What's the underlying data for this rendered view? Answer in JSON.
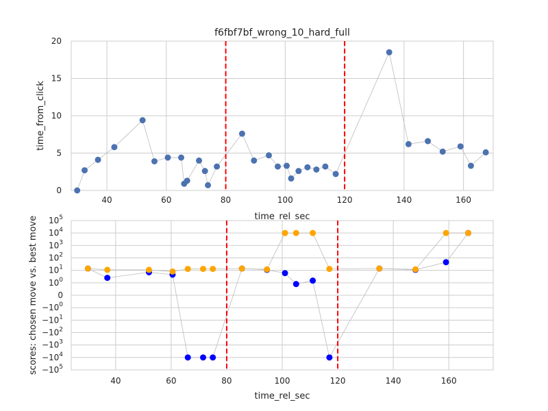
{
  "chart_data": [
    {
      "type": "scatter",
      "title": "f6fbf7bf_wrong_10_hard_full",
      "xlabel": "time_rel_sec",
      "ylabel": "time_from_click",
      "xlim": [
        28,
        170
      ],
      "ylim": [
        0,
        20
      ],
      "xticks": [
        40,
        60,
        80,
        100,
        120,
        140,
        160
      ],
      "yticks": [
        0,
        5,
        10,
        15,
        20
      ],
      "grid": true,
      "connect_points": true,
      "marker_color": "#4c72b0",
      "line_color": "#bbbbbb",
      "vlines": [
        80,
        120
      ],
      "vline_color": "#ff0000",
      "series": [
        {
          "x": [
            30,
            32.5,
            37,
            42.5,
            52,
            56,
            60.5,
            65,
            66,
            67,
            71,
            73,
            74,
            77,
            85.5,
            89.5,
            94.5,
            97.5,
            100.5,
            102,
            104.5,
            107.5,
            110.5,
            113.5,
            117,
            135,
            141.5,
            148,
            153,
            159,
            162.5,
            167.5
          ],
          "y": [
            0,
            2.7,
            4.1,
            5.8,
            9.4,
            3.9,
            4.4,
            4.4,
            0.9,
            1.3,
            4.0,
            2.6,
            0.7,
            3.2,
            7.6,
            4.0,
            4.7,
            3.2,
            3.3,
            1.6,
            2.6,
            3.1,
            2.8,
            3.2,
            2.2,
            18.5,
            6.2,
            6.6,
            5.2,
            5.9,
            3.3,
            5.1
          ]
        }
      ]
    },
    {
      "type": "scatter",
      "xlabel": "time_rel_sec",
      "ylabel": "scores: chosen move vs. best move",
      "xlim": [
        24,
        176
      ],
      "yscale": "symlog",
      "ylim": [
        -100000,
        100000
      ],
      "xticks": [
        40,
        60,
        80,
        100,
        120,
        140,
        160
      ],
      "yticks": [
        100000,
        10000,
        1000,
        100,
        10,
        1,
        0,
        -1,
        -10,
        -100,
        -1000,
        -10000,
        -100000
      ],
      "yticklabels": [
        {
          "base": "10",
          "exp": "5"
        },
        {
          "base": "10",
          "exp": "4"
        },
        {
          "base": "10",
          "exp": "3"
        },
        {
          "base": "10",
          "exp": "2"
        },
        {
          "base": "10",
          "exp": "1"
        },
        {
          "base": "10",
          "exp": "0"
        },
        {
          "base": "0",
          "exp": ""
        },
        {
          "base": "−10",
          "exp": "0"
        },
        {
          "base": "−10",
          "exp": "1"
        },
        {
          "base": "−10",
          "exp": "2"
        },
        {
          "base": "−10",
          "exp": "3"
        },
        {
          "base": "−10",
          "exp": "4"
        },
        {
          "base": "−10",
          "exp": "5"
        }
      ],
      "grid": true,
      "connect_points": true,
      "line_color": "#bbbbbb",
      "vlines": [
        80,
        120
      ],
      "vline_color": "#ff0000",
      "series": [
        {
          "color": "#0000ff",
          "x": [
            30,
            37,
            52,
            60.5,
            66,
            71.5,
            75,
            85.5,
            94.5,
            101,
            105,
            111,
            117,
            135,
            148,
            159,
            167
          ],
          "y": [
            14,
            2.5,
            7,
            4.5,
            -10000,
            -10000,
            -10000,
            14,
            11,
            6,
            0.9,
            1.5,
            -10000,
            14,
            11,
            45,
            10000
          ]
        },
        {
          "color": "#ffa500",
          "x": [
            30,
            37,
            52,
            60.5,
            66,
            71.5,
            75,
            85.5,
            94.5,
            101,
            105,
            111,
            117,
            135,
            148,
            159,
            167
          ],
          "y": [
            14,
            11,
            11,
            8,
            13,
            13,
            13,
            14,
            12,
            10000,
            10000,
            10000,
            13,
            14,
            12,
            10000,
            10000
          ]
        }
      ]
    }
  ]
}
